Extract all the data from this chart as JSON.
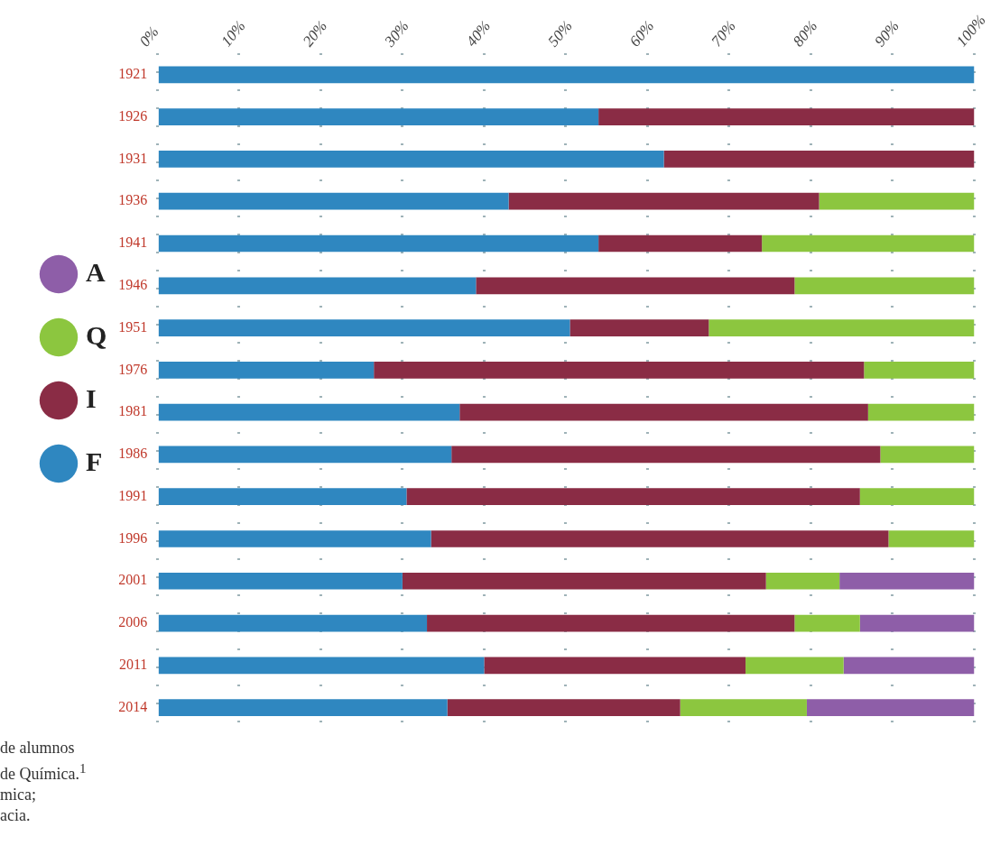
{
  "chart_data": {
    "type": "bar",
    "orientation": "horizontal",
    "stacked": true,
    "categories": [
      "1921",
      "1926",
      "1931",
      "1936",
      "1941",
      "1946",
      "1951",
      "1976",
      "1981",
      "1986",
      "1991",
      "1996",
      "2001",
      "2006",
      "2011",
      "2014"
    ],
    "series": [
      {
        "name": "F",
        "color": "#2f87c0",
        "values": [
          100,
          54,
          62,
          43,
          54,
          39,
          50.5,
          26.5,
          37,
          36,
          30.5,
          33.5,
          30,
          33,
          40,
          35.5
        ]
      },
      {
        "name": "I",
        "color": "#8a2c45",
        "values": [
          null,
          46,
          38,
          38,
          20,
          39,
          17,
          60,
          50,
          52.5,
          55.5,
          56,
          44.5,
          45,
          32,
          28.5
        ]
      },
      {
        "name": "Q",
        "color": "#8cc63f",
        "values": [
          null,
          null,
          null,
          19,
          26,
          22,
          32.5,
          13.5,
          13,
          11.5,
          14,
          10.5,
          9,
          8,
          12,
          15.5
        ]
      },
      {
        "name": "A",
        "color": "#8e5ea8",
        "values": [
          null,
          null,
          null,
          null,
          null,
          null,
          null,
          null,
          null,
          null,
          null,
          null,
          16.5,
          14,
          16,
          20.5
        ]
      }
    ],
    "xlim": [
      0,
      100
    ],
    "xticks": [
      {
        "value": 0,
        "label": "0%"
      },
      {
        "value": 10,
        "label": "10%"
      },
      {
        "value": 20,
        "label": "20%"
      },
      {
        "value": 30,
        "label": "30%"
      },
      {
        "value": 40,
        "label": "40%"
      },
      {
        "value": 50,
        "label": "50%"
      },
      {
        "value": 60,
        "label": "60%"
      },
      {
        "value": 70,
        "label": "70%"
      },
      {
        "value": 80,
        "label": "80%"
      },
      {
        "value": 90,
        "label": "90%"
      },
      {
        "value": 100,
        "label": "100%"
      }
    ],
    "grid": "x",
    "legend": "left",
    "annotations": [
      "de alumnos",
      "de Química.$^{1}$",
      "mica;",
      "acia."
    ]
  }
}
